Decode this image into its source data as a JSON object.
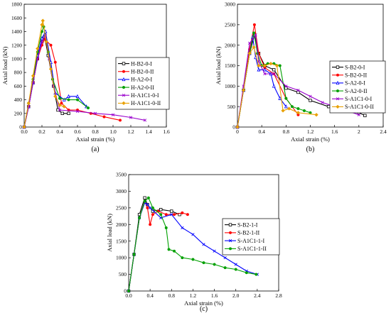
{
  "chart_data": [
    {
      "type": "line",
      "panel_label": "(a)",
      "xlabel": "Axial strain (%)",
      "ylabel": "Axial load (kN)",
      "xlim": [
        0,
        1.6
      ],
      "ylim": [
        0,
        1800
      ],
      "xticks": [
        "0.0",
        "0.2",
        "0.4",
        "0.6",
        "0.8",
        "1.0",
        "1.2",
        "1.4",
        "1.6"
      ],
      "yticks": [
        "0",
        "200",
        "400",
        "600",
        "800",
        "1000",
        "1200",
        "1400",
        "1600",
        "1800"
      ],
      "grid": false,
      "legend_position": "right",
      "series": [
        {
          "name": "H-B2-0-I",
          "color": "#000000",
          "marker": "square",
          "x": [
            0,
            0.05,
            0.1,
            0.15,
            0.2,
            0.23,
            0.27,
            0.33,
            0.38,
            0.43,
            0.5
          ],
          "y": [
            0,
            300,
            650,
            1000,
            1250,
            1320,
            1050,
            600,
            250,
            200,
            200
          ]
        },
        {
          "name": "H-B2-0-II",
          "color": "#ff0000",
          "marker": "circle",
          "x": [
            0,
            0.05,
            0.1,
            0.15,
            0.2,
            0.23,
            0.3,
            0.35,
            0.42,
            0.5,
            0.6,
            0.75,
            0.9,
            1.08
          ],
          "y": [
            0,
            300,
            650,
            1000,
            1200,
            1290,
            1200,
            950,
            350,
            250,
            250,
            200,
            150,
            100
          ]
        },
        {
          "name": "H-A2-0-I",
          "color": "#0000ff",
          "marker": "triangle",
          "x": [
            0,
            0.05,
            0.1,
            0.15,
            0.2,
            0.24,
            0.3,
            0.35,
            0.45,
            0.5,
            0.6,
            0.7
          ],
          "y": [
            0,
            300,
            650,
            1050,
            1300,
            1400,
            950,
            500,
            400,
            450,
            450,
            300
          ]
        },
        {
          "name": "H-A2-0-II",
          "color": "#00a000",
          "marker": "circle",
          "x": [
            0,
            0.05,
            0.1,
            0.15,
            0.2,
            0.22,
            0.27,
            0.32,
            0.4,
            0.5,
            0.6,
            0.72
          ],
          "y": [
            0,
            350,
            700,
            1100,
            1400,
            1470,
            1100,
            700,
            420,
            400,
            400,
            280
          ]
        },
        {
          "name": "H-A1C1-0-I",
          "color": "#9900cc",
          "marker": "cross",
          "x": [
            0,
            0.05,
            0.1,
            0.15,
            0.2,
            0.24,
            0.28,
            0.33,
            0.4,
            0.6,
            0.8,
            1.0,
            1.2,
            1.36
          ],
          "y": [
            0,
            300,
            650,
            1000,
            1250,
            1340,
            1000,
            600,
            250,
            230,
            200,
            180,
            140,
            100
          ]
        },
        {
          "name": "H-A1C1-0-II",
          "color": "#e8a000",
          "marker": "diamond",
          "x": [
            0,
            0.05,
            0.1,
            0.15,
            0.2,
            0.21,
            0.25,
            0.3,
            0.35,
            0.4,
            0.45
          ],
          "y": [
            0,
            350,
            750,
            1150,
            1500,
            1560,
            1250,
            850,
            450,
            320,
            300
          ]
        }
      ]
    },
    {
      "type": "line",
      "panel_label": "(b)",
      "xlabel": "Axial strain (%)",
      "ylabel": "Axial load (kN)",
      "xlim": [
        0,
        2.4
      ],
      "ylim": [
        0,
        3000
      ],
      "xticks": [
        "0",
        "0.4",
        "0.8",
        "1.2",
        "1.6",
        "2",
        "2.4"
      ],
      "yticks": [
        "0",
        "500",
        "1000",
        "1500",
        "2000",
        "2500",
        "3000"
      ],
      "grid": false,
      "legend_position": "right",
      "series": [
        {
          "name": "S-B2-0-I",
          "color": "#000000",
          "marker": "square",
          "x": [
            0,
            0.1,
            0.2,
            0.28,
            0.35,
            0.45,
            0.6,
            0.8,
            1.0,
            1.2,
            1.5,
            1.8,
            2.0,
            2.1
          ],
          "y": [
            0,
            900,
            1800,
            2250,
            1800,
            1500,
            1400,
            950,
            850,
            650,
            500,
            400,
            350,
            280
          ]
        },
        {
          "name": "S-B2-0-II",
          "color": "#ff0000",
          "marker": "circle",
          "x": [
            0,
            0.1,
            0.2,
            0.28,
            0.35,
            0.45,
            0.6,
            0.8,
            1.0
          ],
          "y": [
            0,
            900,
            1900,
            2500,
            1800,
            1450,
            1300,
            700,
            300
          ]
        },
        {
          "name": "S-A2-0-I",
          "color": "#0000ff",
          "marker": "triangle",
          "x": [
            0,
            0.1,
            0.2,
            0.25,
            0.3,
            0.35,
            0.45,
            0.55,
            0.6,
            0.7,
            0.8
          ],
          "y": [
            0,
            900,
            1800,
            2200,
            1700,
            1400,
            1400,
            1300,
            1000,
            700,
            500
          ]
        },
        {
          "name": "S-A2-0-II",
          "color": "#00a000",
          "marker": "circle",
          "x": [
            0,
            0.1,
            0.2,
            0.27,
            0.33,
            0.4,
            0.5,
            0.6,
            0.7,
            0.8,
            0.9,
            1.0,
            1.1,
            1.2
          ],
          "y": [
            0,
            900,
            1800,
            2300,
            1800,
            1500,
            1550,
            1550,
            1500,
            700,
            500,
            450,
            400,
            350
          ]
        },
        {
          "name": "S-A1C1-0-I",
          "color": "#9900cc",
          "marker": "cross",
          "x": [
            0,
            0.1,
            0.2,
            0.3,
            0.35,
            0.45,
            0.6,
            0.8,
            1.0,
            1.2,
            1.4,
            1.6,
            1.8,
            2.0
          ],
          "y": [
            0,
            1000,
            2050,
            2250,
            1600,
            1300,
            1300,
            1000,
            900,
            750,
            600,
            500,
            400,
            300
          ]
        },
        {
          "name": "S-A1C1-0-II",
          "color": "#e8a000",
          "marker": "diamond",
          "x": [
            0,
            0.1,
            0.2,
            0.27,
            0.35,
            0.45,
            0.55,
            0.65,
            0.75,
            0.85,
            1.0,
            1.3
          ],
          "y": [
            0,
            900,
            1800,
            1950,
            1500,
            1500,
            1550,
            1500,
            400,
            450,
            350,
            300
          ]
        }
      ]
    },
    {
      "type": "line",
      "panel_label": "(c)",
      "xlabel": "Axial strain (%)",
      "ylabel": "Axial load (kN)",
      "xlim": [
        0,
        2.8
      ],
      "ylim": [
        0,
        3500
      ],
      "xticks": [
        "0.0",
        "0.4",
        "0.8",
        "1.2",
        "1.6",
        "2.0",
        "2.4",
        "2.8"
      ],
      "yticks": [
        "0",
        "500",
        "1000",
        "1500",
        "2000",
        "2500",
        "3000",
        "3500"
      ],
      "grid": false,
      "legend_position": "right",
      "series": [
        {
          "name": "S-B2-1-I",
          "color": "#000000",
          "marker": "square",
          "x": [
            0,
            0.1,
            0.2,
            0.3,
            0.35,
            0.45,
            0.6,
            0.8,
            0.95
          ],
          "y": [
            0,
            1100,
            2300,
            2800,
            2600,
            2400,
            2450,
            2400,
            2300
          ]
        },
        {
          "name": "S-B2-1-II",
          "color": "#ff0000",
          "marker": "circle",
          "x": [
            0,
            0.1,
            0.2,
            0.3,
            0.35,
            0.4,
            0.45,
            0.55,
            0.7,
            0.85,
            1.0,
            1.1
          ],
          "y": [
            0,
            1100,
            2200,
            2700,
            2500,
            2000,
            2300,
            2400,
            2300,
            2300,
            2350,
            2300
          ]
        },
        {
          "name": "S-A1C1-1-I",
          "color": "#0000ff",
          "marker": "cross",
          "x": [
            0,
            0.1,
            0.2,
            0.3,
            0.35,
            0.4,
            0.6,
            0.8,
            1.0,
            1.2,
            1.4,
            1.6,
            1.8,
            2.0,
            2.2,
            2.4
          ],
          "y": [
            0,
            1100,
            2200,
            2650,
            2600,
            2500,
            2200,
            2300,
            1900,
            1700,
            1400,
            1200,
            1000,
            800,
            600,
            500
          ]
        },
        {
          "name": "S-A1C1-1-II",
          "color": "#00a000",
          "marker": "circle",
          "x": [
            0,
            0.1,
            0.2,
            0.3,
            0.37,
            0.45,
            0.6,
            0.7,
            0.75,
            0.85,
            1.0,
            1.2,
            1.4,
            1.6,
            1.8,
            2.0,
            2.2,
            2.38
          ],
          "y": [
            0,
            1100,
            2200,
            2700,
            2800,
            2500,
            2300,
            1900,
            1250,
            1200,
            1000,
            950,
            850,
            800,
            700,
            650,
            550,
            500
          ]
        }
      ]
    }
  ]
}
